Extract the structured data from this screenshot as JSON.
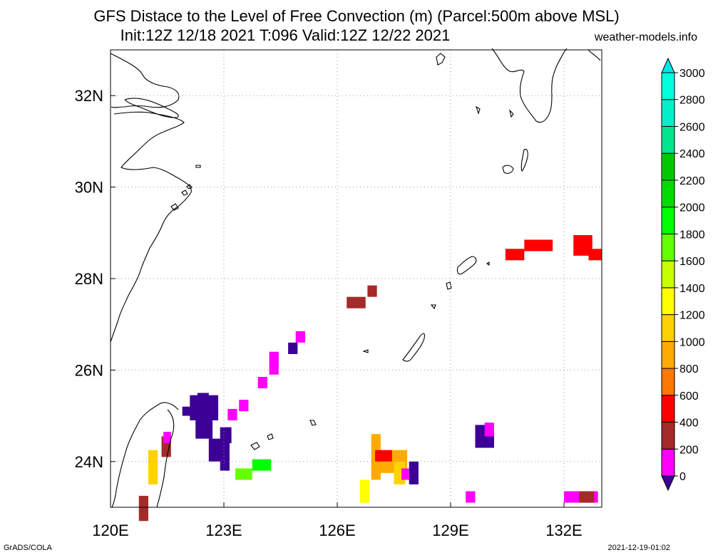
{
  "title_line1": "GFS Distace to the Level of Free Convection (m) (Parcel:500m above MSL)",
  "title_line2": "Init:12Z 12/18 2021 T:096 Valid:12Z 12/22 2021",
  "site": "weather-models.info",
  "footer_left": "GrADS/COLA",
  "footer_right": "2021-12-19-01:02",
  "map": {
    "lon_range": [
      120,
      133
    ],
    "lat_range": [
      23,
      33
    ],
    "lon_ticks": [
      120,
      123,
      126,
      129,
      132
    ],
    "lon_labels": [
      "120E",
      "123E",
      "126E",
      "129E",
      "132E"
    ],
    "lat_ticks": [
      24,
      26,
      28,
      30,
      32
    ],
    "lat_labels": [
      "24N",
      "26N",
      "28N",
      "30N",
      "32N"
    ]
  },
  "colorbar": {
    "levels": [
      "0",
      "200",
      "400",
      "600",
      "800",
      "1000",
      "1200",
      "1400",
      "1600",
      "1800",
      "2000",
      "2200",
      "2400",
      "2600",
      "2800",
      "3000"
    ],
    "colors": [
      "#3c0096",
      "#ff00ff",
      "#a52a2a",
      "#ff0000",
      "#ff7800",
      "#ffaa00",
      "#ffd200",
      "#ffff00",
      "#c8ff00",
      "#64ff00",
      "#00ff00",
      "#00dc00",
      "#00c800",
      "#00e68c",
      "#00f0c8",
      "#00ffdc",
      "#00e6e6"
    ]
  },
  "cells": [
    {
      "lon": 122.1,
      "lat": 24.9,
      "w": 0.75,
      "h": 0.55,
      "c": "#3c0096"
    },
    {
      "lon": 121.9,
      "lat": 25.0,
      "w": 0.3,
      "h": 0.2,
      "c": "#3c0096"
    },
    {
      "lon": 122.3,
      "lat": 25.2,
      "w": 0.3,
      "h": 0.3,
      "c": "#3c0096"
    },
    {
      "lon": 122.25,
      "lat": 24.5,
      "w": 0.45,
      "h": 0.4,
      "c": "#3c0096"
    },
    {
      "lon": 122.6,
      "lat": 24.0,
      "w": 0.55,
      "h": 0.5,
      "c": "#3c0096"
    },
    {
      "lon": 122.9,
      "lat": 24.4,
      "w": 0.3,
      "h": 0.35,
      "c": "#3c0096"
    },
    {
      "lon": 122.9,
      "lat": 23.8,
      "w": 0.25,
      "h": 0.25,
      "c": "#3c0096"
    },
    {
      "lon": 123.1,
      "lat": 24.9,
      "w": 0.25,
      "h": 0.25,
      "c": "#ff00ff"
    },
    {
      "lon": 123.4,
      "lat": 25.1,
      "w": 0.25,
      "h": 0.25,
      "c": "#ff00ff"
    },
    {
      "lon": 123.9,
      "lat": 25.6,
      "w": 0.25,
      "h": 0.25,
      "c": "#ff00ff"
    },
    {
      "lon": 124.2,
      "lat": 25.9,
      "w": 0.25,
      "h": 0.5,
      "c": "#ff00ff"
    },
    {
      "lon": 124.7,
      "lat": 26.35,
      "w": 0.25,
      "h": 0.25,
      "c": "#3c0096"
    },
    {
      "lon": 124.9,
      "lat": 26.6,
      "w": 0.25,
      "h": 0.25,
      "c": "#ff00ff"
    },
    {
      "lon": 123.3,
      "lat": 23.6,
      "w": 0.45,
      "h": 0.25,
      "c": "#64ff00"
    },
    {
      "lon": 123.75,
      "lat": 23.8,
      "w": 0.5,
      "h": 0.25,
      "c": "#00ff00"
    },
    {
      "lon": 121.0,
      "lat": 23.5,
      "w": 0.25,
      "h": 0.75,
      "c": "#ffd200"
    },
    {
      "lon": 121.35,
      "lat": 24.1,
      "w": 0.25,
      "h": 0.45,
      "c": "#a52a2a"
    },
    {
      "lon": 121.4,
      "lat": 24.4,
      "w": 0.2,
      "h": 0.25,
      "c": "#ff00ff"
    },
    {
      "lon": 120.75,
      "lat": 22.7,
      "w": 0.25,
      "h": 0.55,
      "c": "#a52a2a"
    },
    {
      "lon": 126.25,
      "lat": 27.35,
      "w": 0.5,
      "h": 0.25,
      "c": "#a52a2a"
    },
    {
      "lon": 126.8,
      "lat": 27.6,
      "w": 0.25,
      "h": 0.25,
      "c": "#a52a2a"
    },
    {
      "lon": 126.6,
      "lat": 23.1,
      "w": 0.25,
      "h": 0.5,
      "c": "#ffff00"
    },
    {
      "lon": 126.9,
      "lat": 23.6,
      "w": 0.25,
      "h": 1.0,
      "c": "#ffaa00"
    },
    {
      "lon": 127.15,
      "lat": 23.75,
      "w": 0.7,
      "h": 0.5,
      "c": "#ffaa00"
    },
    {
      "lon": 127.0,
      "lat": 24.0,
      "w": 0.45,
      "h": 0.25,
      "c": "#ff0000"
    },
    {
      "lon": 127.5,
      "lat": 23.5,
      "w": 0.3,
      "h": 0.5,
      "c": "#ffd200"
    },
    {
      "lon": 127.9,
      "lat": 23.5,
      "w": 0.25,
      "h": 0.5,
      "c": "#3c0096"
    },
    {
      "lon": 127.7,
      "lat": 23.6,
      "w": 0.2,
      "h": 0.25,
      "c": "#ff00ff"
    },
    {
      "lon": 129.65,
      "lat": 24.3,
      "w": 0.5,
      "h": 0.5,
      "c": "#3c0096"
    },
    {
      "lon": 129.9,
      "lat": 24.55,
      "w": 0.25,
      "h": 0.3,
      "c": "#ff00ff"
    },
    {
      "lon": 129.4,
      "lat": 23.1,
      "w": 0.25,
      "h": 0.25,
      "c": "#ff00ff"
    },
    {
      "lon": 132.0,
      "lat": 23.1,
      "w": 0.9,
      "h": 0.25,
      "c": "#ff00ff"
    },
    {
      "lon": 132.4,
      "lat": 23.1,
      "w": 0.4,
      "h": 0.25,
      "c": "#a52a2a"
    },
    {
      "lon": 130.45,
      "lat": 28.4,
      "w": 0.5,
      "h": 0.25,
      "c": "#ff0000"
    },
    {
      "lon": 130.95,
      "lat": 28.6,
      "w": 0.75,
      "h": 0.25,
      "c": "#ff0000"
    },
    {
      "lon": 132.25,
      "lat": 28.5,
      "w": 0.5,
      "h": 0.45,
      "c": "#ff0000"
    },
    {
      "lon": 132.65,
      "lat": 28.4,
      "w": 0.35,
      "h": 0.25,
      "c": "#ff0000"
    }
  ]
}
